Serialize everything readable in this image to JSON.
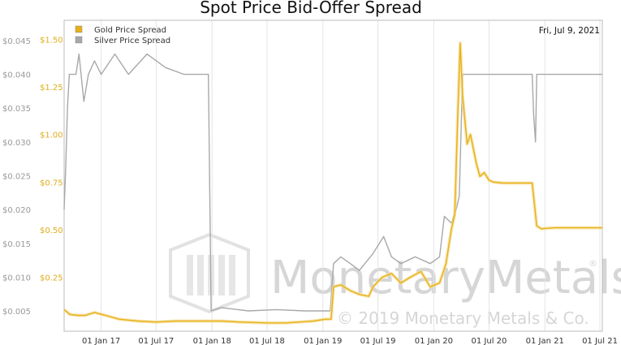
{
  "chart_data": {
    "type": "line",
    "title": "Spot Price Bid-Offer Spread",
    "date_label": "Fri, Jul 9, 2021",
    "x_ticks": [
      "01 Jan 17",
      "01 Jul 17",
      "01 Jan 18",
      "01 Jul 18",
      "01 Jan 19",
      "01 Jul 19",
      "01 Jan 20",
      "01 Jul 20",
      "01 Jan 21",
      "01 Jul 21"
    ],
    "x_range": [
      "2016-09-01",
      "2021-07-09"
    ],
    "y_left": {
      "ticks": [
        "$0.005",
        "$0.010",
        "$0.015",
        "$0.020",
        "$0.025",
        "$0.030",
        "$0.035",
        "$0.040",
        "$0.045"
      ],
      "range": [
        0.002,
        0.048
      ],
      "series": "Silver Price Spread"
    },
    "y_right": {
      "ticks": [
        "$0.25",
        "$0.50",
        "$0.75",
        "$1.00",
        "$1.25",
        "$1.50"
      ],
      "range": [
        -0.0333,
        1.6
      ],
      "series": "Gold Price Spread"
    },
    "legend_position": "top-left",
    "grid": {
      "vertical": true,
      "horizontal": false
    },
    "series": [
      {
        "name": "Gold Price Spread",
        "axis": "right",
        "color": "#e8b118",
        "points": [
          [
            "2016-09-01",
            0.08
          ],
          [
            "2016-09-20",
            0.055
          ],
          [
            "2016-10-15",
            0.05
          ],
          [
            "2016-11-10",
            0.05
          ],
          [
            "2016-12-10",
            0.065
          ],
          [
            "2017-01-15",
            0.05
          ],
          [
            "2017-03-01",
            0.03
          ],
          [
            "2017-05-01",
            0.02
          ],
          [
            "2017-07-01",
            0.015
          ],
          [
            "2017-09-01",
            0.02
          ],
          [
            "2017-11-01",
            0.02
          ],
          [
            "2017-12-15",
            0.02
          ],
          [
            "2018-02-01",
            0.02
          ],
          [
            "2018-04-01",
            0.015
          ],
          [
            "2018-07-01",
            0.01
          ],
          [
            "2018-09-01",
            0.01
          ],
          [
            "2018-10-15",
            0.015
          ],
          [
            "2018-12-01",
            0.02
          ],
          [
            "2019-01-10",
            0.03
          ],
          [
            "2019-01-28",
            0.03
          ],
          [
            "2019-02-05",
            0.2
          ],
          [
            "2019-03-01",
            0.21
          ],
          [
            "2019-04-01",
            0.18
          ],
          [
            "2019-05-01",
            0.16
          ],
          [
            "2019-06-01",
            0.15
          ],
          [
            "2019-06-15",
            0.2
          ],
          [
            "2019-07-15",
            0.25
          ],
          [
            "2019-08-15",
            0.27
          ],
          [
            "2019-09-15",
            0.22
          ],
          [
            "2019-10-15",
            0.25
          ],
          [
            "2019-11-20",
            0.28
          ],
          [
            "2019-12-20",
            0.2
          ],
          [
            "2020-01-20",
            0.22
          ],
          [
            "2020-02-10",
            0.32
          ],
          [
            "2020-02-28",
            0.5
          ],
          [
            "2020-03-10",
            0.58
          ],
          [
            "2020-03-20",
            1.1
          ],
          [
            "2020-03-28",
            1.48
          ],
          [
            "2020-04-05",
            1.2
          ],
          [
            "2020-04-20",
            0.95
          ],
          [
            "2020-05-01",
            1.0
          ],
          [
            "2020-05-20",
            0.85
          ],
          [
            "2020-06-01",
            0.78
          ],
          [
            "2020-06-15",
            0.8
          ],
          [
            "2020-07-01",
            0.76
          ],
          [
            "2020-07-15",
            0.75
          ],
          [
            "2020-08-15",
            0.745
          ],
          [
            "2020-10-15",
            0.745
          ],
          [
            "2020-11-20",
            0.745
          ],
          [
            "2020-12-05",
            0.52
          ],
          [
            "2020-12-20",
            0.505
          ],
          [
            "2021-02-01",
            0.51
          ],
          [
            "2021-07-09",
            0.51
          ]
        ]
      },
      {
        "name": "Silver Price Spread",
        "axis": "left",
        "color": "#a8a8a8",
        "points": [
          [
            "2016-09-01",
            0.02
          ],
          [
            "2016-09-06",
            0.026
          ],
          [
            "2016-09-12",
            0.035
          ],
          [
            "2016-09-18",
            0.04
          ],
          [
            "2016-10-10",
            0.04
          ],
          [
            "2016-10-20",
            0.043
          ],
          [
            "2016-11-05",
            0.036
          ],
          [
            "2016-11-20",
            0.04
          ],
          [
            "2016-12-10",
            0.042
          ],
          [
            "2017-01-01",
            0.04
          ],
          [
            "2017-02-15",
            0.043
          ],
          [
            "2017-04-01",
            0.04
          ],
          [
            "2017-06-01",
            0.043
          ],
          [
            "2017-08-01",
            0.041
          ],
          [
            "2017-10-01",
            0.04
          ],
          [
            "2017-12-20",
            0.04
          ],
          [
            "2017-12-29",
            0.005
          ],
          [
            "2018-02-01",
            0.0055
          ],
          [
            "2018-05-01",
            0.005
          ],
          [
            "2018-08-01",
            0.0052
          ],
          [
            "2018-11-01",
            0.005
          ],
          [
            "2018-12-15",
            0.005
          ],
          [
            "2019-01-25",
            0.005
          ],
          [
            "2019-02-05",
            0.012
          ],
          [
            "2019-03-01",
            0.013
          ],
          [
            "2019-04-01",
            0.012
          ],
          [
            "2019-05-01",
            0.011
          ],
          [
            "2019-06-15",
            0.0135
          ],
          [
            "2019-07-20",
            0.016
          ],
          [
            "2019-08-15",
            0.013
          ],
          [
            "2019-09-15",
            0.012
          ],
          [
            "2019-11-01",
            0.013
          ],
          [
            "2019-12-20",
            0.012
          ],
          [
            "2020-01-20",
            0.013
          ],
          [
            "2020-02-05",
            0.019
          ],
          [
            "2020-02-28",
            0.018
          ],
          [
            "2020-03-15",
            0.02
          ],
          [
            "2020-03-25",
            0.022
          ],
          [
            "2020-04-05",
            0.04
          ],
          [
            "2020-07-01",
            0.04
          ],
          [
            "2020-10-01",
            0.04
          ],
          [
            "2020-11-20",
            0.04
          ],
          [
            "2020-11-25",
            0.034
          ],
          [
            "2020-12-01",
            0.03
          ],
          [
            "2020-12-05",
            0.04
          ],
          [
            "2021-07-09",
            0.04
          ]
        ]
      }
    ]
  },
  "legend": {
    "items": [
      {
        "label": "Gold Price Spread",
        "color": "#e8b118"
      },
      {
        "label": "Silver Price Spread",
        "color": "#a8a8a8"
      }
    ]
  },
  "watermark": {
    "brand_a": "Monetary",
    "brand_b": "Metals",
    "registered": "®",
    "copyright": "© 2019 Monetary Metals & Co."
  }
}
